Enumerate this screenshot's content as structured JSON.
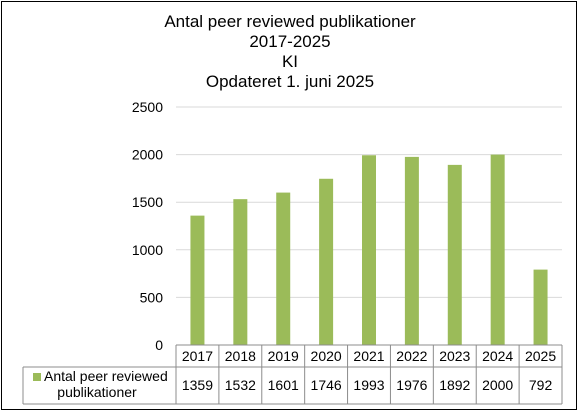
{
  "chart_data": {
    "type": "bar",
    "title_lines": [
      "Antal peer reviewed publikationer",
      "2017-2025",
      "KI",
      "Opdateret 1. juni 2025"
    ],
    "categories": [
      "2017",
      "2018",
      "2019",
      "2020",
      "2021",
      "2022",
      "2023",
      "2024",
      "2025"
    ],
    "series": [
      {
        "name_lines": [
          "Antal peer reviewed",
          "publikationer"
        ],
        "values": [
          1359,
          1532,
          1601,
          1746,
          1993,
          1976,
          1892,
          2000,
          792
        ],
        "color": "#9bbb59"
      }
    ],
    "ylim": [
      0,
      2500
    ],
    "yticks": [
      "0",
      "500",
      "1000",
      "1500",
      "2000",
      "2500"
    ],
    "grid": true,
    "legend": "data-table"
  }
}
